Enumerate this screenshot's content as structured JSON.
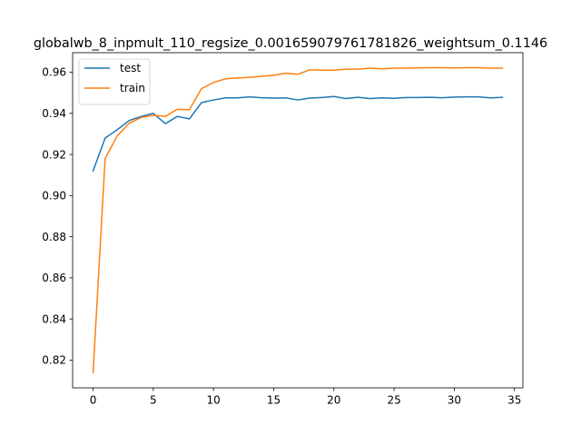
{
  "chart_data": {
    "type": "line",
    "title": "globalwb_8_inpmult_110_regsize_0.001659079761781826_weightsum_0.1146",
    "xlabel": "",
    "ylabel": "",
    "xlim": [
      -1.7,
      35.7
    ],
    "ylim": [
      0.8065,
      0.9695
    ],
    "xticks": [
      0,
      5,
      10,
      15,
      20,
      25,
      30,
      35
    ],
    "yticks": [
      0.82,
      0.84,
      0.86,
      0.88,
      0.9,
      0.92,
      0.94,
      0.96
    ],
    "ytick_labels": [
      "0.82",
      "0.84",
      "0.86",
      "0.88",
      "0.90",
      "0.92",
      "0.94",
      "0.96"
    ],
    "legend_position": "top-left",
    "grid": false,
    "x": [
      0,
      1,
      2,
      3,
      4,
      5,
      6,
      7,
      8,
      9,
      10,
      11,
      12,
      13,
      14,
      15,
      16,
      17,
      18,
      19,
      20,
      21,
      22,
      23,
      24,
      25,
      26,
      27,
      28,
      29,
      30,
      31,
      32,
      33,
      34
    ],
    "series": [
      {
        "name": "test",
        "color": "#1f77b4",
        "values": [
          0.912,
          0.928,
          0.932,
          0.9365,
          0.9385,
          0.94,
          0.935,
          0.9385,
          0.9373,
          0.9452,
          0.9465,
          0.9475,
          0.9475,
          0.948,
          0.9476,
          0.9474,
          0.9475,
          0.9465,
          0.9474,
          0.9477,
          0.9482,
          0.9472,
          0.9478,
          0.9472,
          0.9475,
          0.9473,
          0.9477,
          0.9477,
          0.9478,
          0.9476,
          0.9479,
          0.948,
          0.948,
          0.9475,
          0.9478
        ]
      },
      {
        "name": "train",
        "color": "#ff7f0e",
        "values": [
          0.814,
          0.918,
          0.929,
          0.9352,
          0.938,
          0.939,
          0.9385,
          0.942,
          0.9418,
          0.952,
          0.955,
          0.9568,
          0.9572,
          0.9575,
          0.958,
          0.9585,
          0.9595,
          0.959,
          0.9612,
          0.961,
          0.961,
          0.9615,
          0.9615,
          0.962,
          0.9616,
          0.962,
          0.962,
          0.9621,
          0.9622,
          0.9622,
          0.9621,
          0.9622,
          0.9622,
          0.962,
          0.962
        ]
      }
    ]
  }
}
